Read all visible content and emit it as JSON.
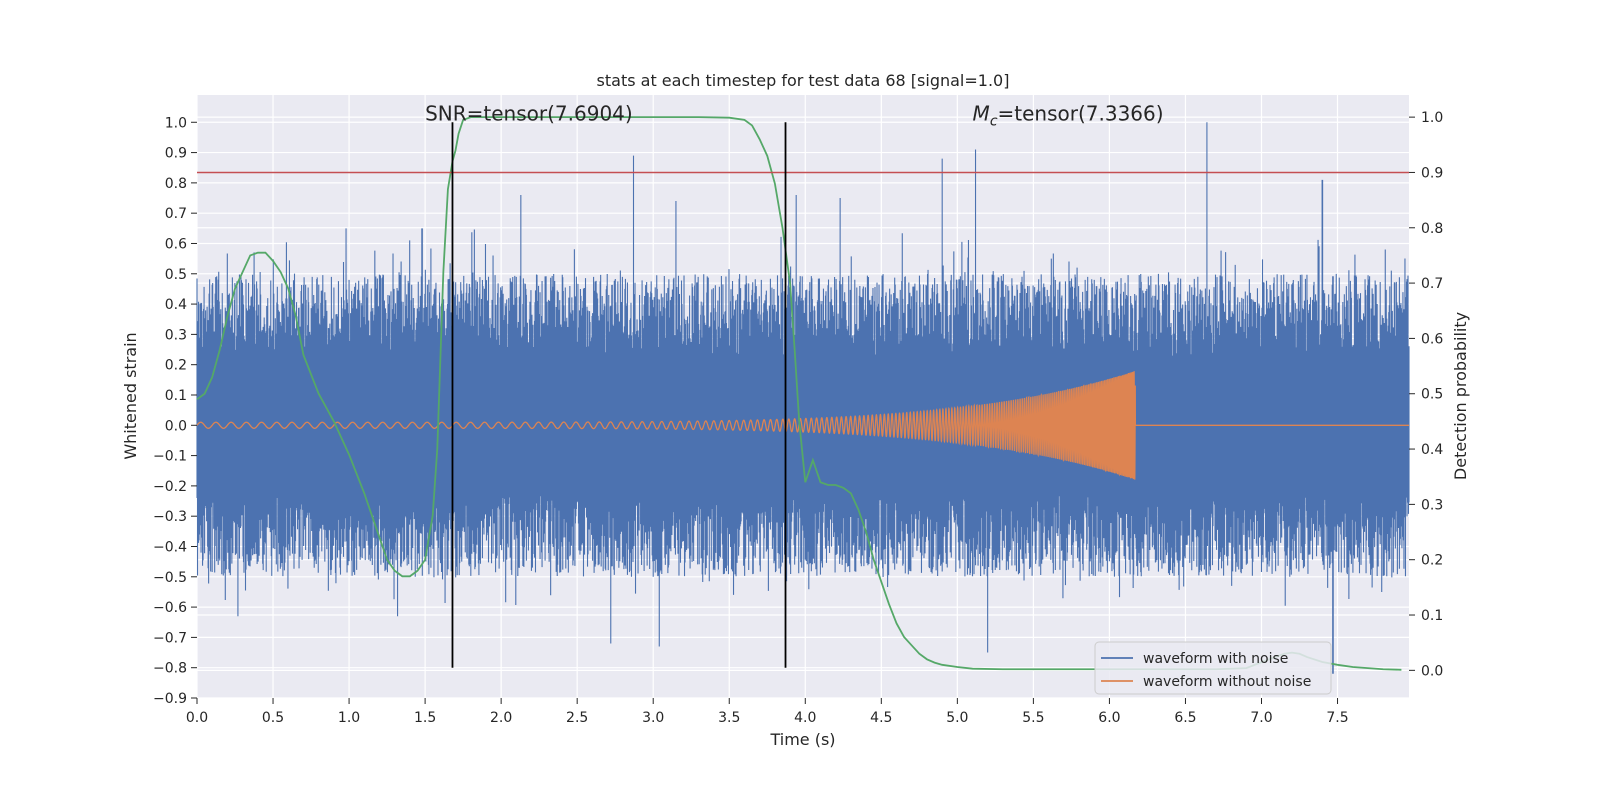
{
  "colors": {
    "plot_background": "#eaeaf2",
    "grid": "#ffffff",
    "noise": "#4c72b0",
    "clean": "#dd8452",
    "probability": "#55a868",
    "threshold": "#c44e52",
    "markers": "#000000"
  },
  "chart_data": {
    "type": "line",
    "title": "stats at each timestep for test data 68 [signal=1.0]",
    "xlabel": "Time (s)",
    "ylabel": "Whitened strain",
    "y2label": "Detection probability",
    "xlim": [
      0.0,
      7.97
    ],
    "ylim": [
      -0.9,
      1.09
    ],
    "y2lim": [
      -0.05,
      1.04
    ],
    "grid": true,
    "xticks": [
      0.0,
      0.5,
      1.0,
      1.5,
      2.0,
      2.5,
      3.0,
      3.5,
      4.0,
      4.5,
      5.0,
      5.5,
      6.0,
      6.5,
      7.0,
      7.5
    ],
    "xtick_labels": [
      "0.0",
      "0.5",
      "1.0",
      "1.5",
      "2.0",
      "2.5",
      "3.0",
      "3.5",
      "4.0",
      "4.5",
      "5.0",
      "5.5",
      "6.0",
      "6.5",
      "7.0",
      "7.5"
    ],
    "yticks": [
      -0.9,
      -0.8,
      -0.7,
      -0.6,
      -0.5,
      -0.4,
      -0.3,
      -0.2,
      -0.1,
      0.0,
      0.1,
      0.2,
      0.3,
      0.4,
      0.5,
      0.6,
      0.7,
      0.8,
      0.9,
      1.0
    ],
    "ytick_labels": [
      "−0.9",
      "−0.8",
      "−0.7",
      "−0.6",
      "−0.5",
      "−0.4",
      "−0.3",
      "−0.2",
      "−0.1",
      "0.0",
      "0.1",
      "0.2",
      "0.3",
      "0.4",
      "0.5",
      "0.6",
      "0.7",
      "0.8",
      "0.9",
      "1.0"
    ],
    "y2ticks": [
      0.0,
      0.1,
      0.2,
      0.3,
      0.4,
      0.5,
      0.6,
      0.7,
      0.8,
      0.9,
      1.0
    ],
    "y2tick_labels": [
      "0.0",
      "0.1",
      "0.2",
      "0.3",
      "0.4",
      "0.5",
      "0.6",
      "0.7",
      "0.8",
      "0.9",
      "1.0"
    ],
    "series": [
      {
        "name": "waveform with noise",
        "kind": "noise",
        "axis": "left",
        "typical_max": 0.5,
        "typical_min": -0.5,
        "peaks": [
          [
            0.27,
            -0.63
          ],
          [
            0.98,
            0.65
          ],
          [
            1.32,
            -0.63
          ],
          [
            1.48,
            0.65
          ],
          [
            2.13,
            0.76
          ],
          [
            2.72,
            -0.72
          ],
          [
            2.87,
            0.89
          ],
          [
            3.04,
            -0.73
          ],
          [
            3.15,
            0.74
          ],
          [
            3.94,
            0.76
          ],
          [
            4.23,
            0.75
          ],
          [
            4.9,
            0.88
          ],
          [
            5.12,
            0.91
          ],
          [
            5.2,
            -0.75
          ],
          [
            6.64,
            1.0
          ],
          [
            7.4,
            0.81
          ],
          [
            7.47,
            -0.82
          ]
        ]
      },
      {
        "name": "waveform without noise",
        "kind": "chirp",
        "axis": "left",
        "start_amplitude": 0.01,
        "end_amplitude": 0.18,
        "merger_time": 6.17,
        "start_frequency": 10,
        "end_frequency": 110
      },
      {
        "name": "",
        "kind": "probability",
        "axis": "right",
        "x": [
          0.0,
          0.05,
          0.1,
          0.15,
          0.2,
          0.25,
          0.3,
          0.35,
          0.4,
          0.45,
          0.5,
          0.55,
          0.6,
          0.65,
          0.7,
          0.8,
          0.9,
          1.0,
          1.1,
          1.2,
          1.25,
          1.3,
          1.35,
          1.4,
          1.45,
          1.5,
          1.55,
          1.58,
          1.6,
          1.62,
          1.65,
          1.68,
          1.7,
          1.72,
          1.75,
          1.8,
          1.9,
          2.0,
          2.5,
          3.0,
          3.3,
          3.5,
          3.6,
          3.65,
          3.7,
          3.75,
          3.8,
          3.85,
          3.9,
          3.93,
          3.96,
          4.0,
          4.05,
          4.1,
          4.15,
          4.2,
          4.25,
          4.3,
          4.35,
          4.4,
          4.45,
          4.5,
          4.55,
          4.6,
          4.65,
          4.7,
          4.75,
          4.8,
          4.85,
          4.9,
          5.0,
          5.1,
          5.3,
          5.5,
          6.0,
          6.3,
          6.5,
          6.7,
          6.9,
          7.05,
          7.15,
          7.2,
          7.25,
          7.3,
          7.4,
          7.5,
          7.6,
          7.7,
          7.8,
          7.92
        ],
        "values": [
          0.49,
          0.5,
          0.53,
          0.58,
          0.64,
          0.69,
          0.72,
          0.75,
          0.755,
          0.755,
          0.74,
          0.72,
          0.69,
          0.64,
          0.57,
          0.5,
          0.45,
          0.39,
          0.32,
          0.24,
          0.2,
          0.18,
          0.17,
          0.17,
          0.18,
          0.2,
          0.28,
          0.4,
          0.56,
          0.72,
          0.87,
          0.92,
          0.94,
          0.97,
          0.995,
          1.0,
          1.0,
          1.0,
          1.0,
          1.0,
          1.0,
          0.999,
          0.995,
          0.985,
          0.96,
          0.93,
          0.88,
          0.8,
          0.7,
          0.58,
          0.45,
          0.34,
          0.38,
          0.34,
          0.335,
          0.335,
          0.33,
          0.32,
          0.29,
          0.25,
          0.2,
          0.16,
          0.12,
          0.085,
          0.06,
          0.045,
          0.03,
          0.02,
          0.014,
          0.01,
          0.006,
          0.003,
          0.002,
          0.002,
          0.002,
          0.002,
          0.002,
          0.002,
          0.004,
          0.02,
          0.03,
          0.032,
          0.03,
          0.024,
          0.015,
          0.01,
          0.006,
          0.004,
          0.002,
          0.001
        ]
      }
    ],
    "threshold_line": {
      "axis": "right",
      "value": 0.9
    },
    "vertical_lines": [
      1.68,
      3.87
    ],
    "vertical_line_range": [
      -0.8,
      1.0
    ],
    "annotations": [
      {
        "text": "SNR=tensor(7.6904)",
        "x": 1.5,
        "y": 1.0,
        "italic_prefix": ""
      },
      {
        "text": "=tensor(7.3366)",
        "x": 5.1,
        "y": 1.0,
        "italic_prefix": "M",
        "subscript": "c"
      }
    ],
    "legend": {
      "position": "lower-right",
      "entries": [
        "waveform with noise",
        "waveform without noise"
      ]
    }
  }
}
